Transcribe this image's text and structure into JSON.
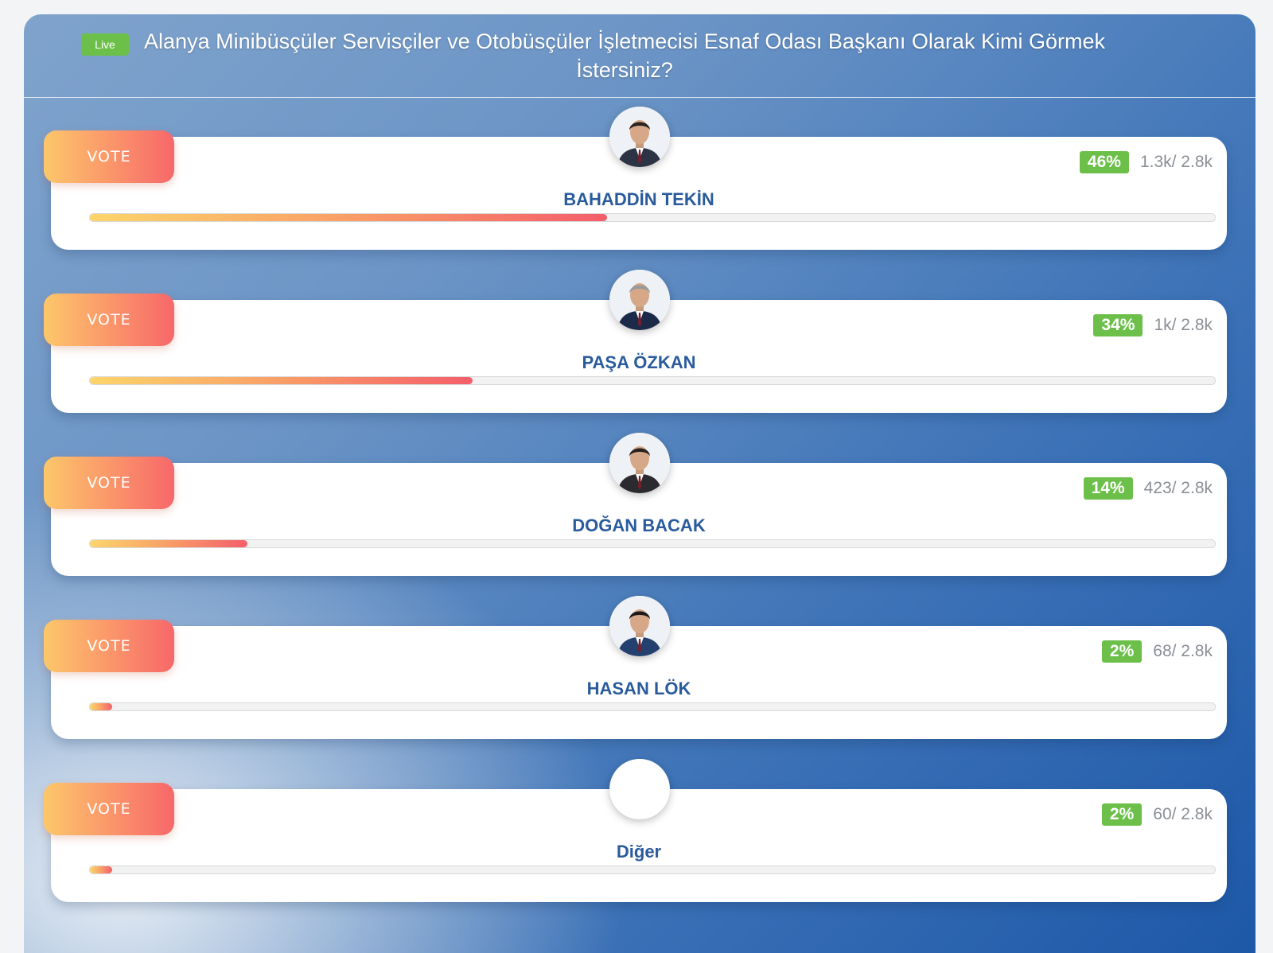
{
  "poll": {
    "live_label": "Live",
    "title": "Alanya Minibüsçüler Servisçiler ve Otobüsçüler İşletmecisi Esnaf Odası Başkanı Olarak Kimi Görmek İstersiniz?"
  },
  "candidates": [
    {
      "name": "BAHADDİN TEKİN",
      "vote_label": "VOTE",
      "percent": "46%",
      "votes": "1.3k/ 2.8k",
      "progress": 0.46,
      "has_photo": true,
      "suit_color": "#2c3344",
      "hair_color": "#2a231f"
    },
    {
      "name": "PAŞA ÖZKAN",
      "vote_label": "VOTE",
      "percent": "34%",
      "votes": "1k/ 2.8k",
      "progress": 0.34,
      "has_photo": true,
      "suit_color": "#1c2a4a",
      "hair_color": "#9a9a9a"
    },
    {
      "name": "DOĞAN BACAK",
      "vote_label": "VOTE",
      "percent": "14%",
      "votes": "423/ 2.8k",
      "progress": 0.14,
      "has_photo": true,
      "suit_color": "#2b2b2f",
      "hair_color": "#2a231f"
    },
    {
      "name": "HASAN LÖK",
      "vote_label": "VOTE",
      "percent": "2%",
      "votes": "68/ 2.8k",
      "progress": 0.02,
      "has_photo": true,
      "suit_color": "#24406e",
      "hair_color": "#1c1a1a"
    },
    {
      "name": "Diğer",
      "vote_label": "VOTE",
      "percent": "2%",
      "votes": "60/ 2.8k",
      "progress": 0.02,
      "has_photo": false
    }
  ]
}
